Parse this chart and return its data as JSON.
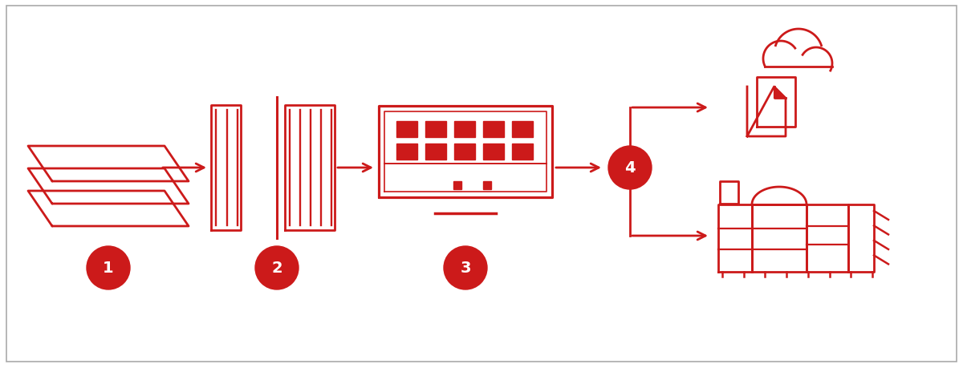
{
  "bg_color": "#ffffff",
  "border_color": "#aaaaaa",
  "icon_color": "#cc1a1a",
  "lw": 2.0,
  "fig_width": 12.0,
  "fig_height": 4.6,
  "dpi": 100
}
